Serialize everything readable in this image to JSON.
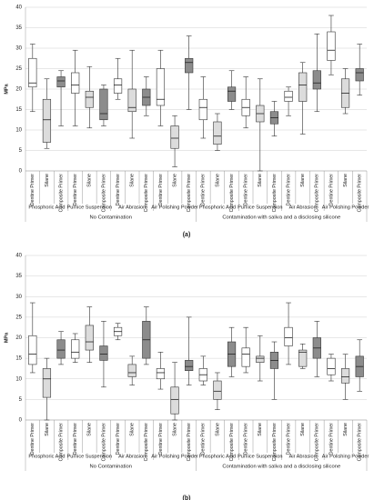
{
  "chart_data": [
    {
      "type": "box",
      "caption": "(a)",
      "ylabel": "MPa",
      "ylim": [
        0,
        40
      ],
      "yticks": [
        0,
        5,
        10,
        15,
        20,
        25,
        30,
        35,
        40
      ],
      "grid": true,
      "colors": [
        "#ffffff",
        "#dcdcdc",
        "#8c8c8c"
      ],
      "categories": [
        "Dentine Primer",
        "Silane",
        "Composite Primer",
        "Dentine Primer",
        "Silane",
        "Composite Primer",
        "Dentine Primer",
        "Silane",
        "Composite Primer",
        "Dentine Primer",
        "Silane",
        "Composite Primer",
        "Dentine Primer",
        "Silane",
        "Composite Primer",
        "Dentine Primer",
        "Silane",
        "Composite Primer",
        "Dentine Primer",
        "Silane",
        "Composite Primer",
        "Dentine Primer",
        "Silane",
        "Composite Primer"
      ],
      "treatments": [
        "Phosphoric Acid",
        "Pumice Suspension",
        "Air Abrasion",
        "Air Polishing Powder",
        "Phosphoric Acid",
        "Pumice Suspension",
        "Air Abrasion",
        "Air Polishing Powder"
      ],
      "contaminations": [
        "No Contamination",
        "Contamination with saliva and a disclosing silicone"
      ],
      "values": [
        {
          "min": 14.5,
          "q1": 20.5,
          "median": 21.5,
          "q3": 27.5,
          "max": 31
        },
        {
          "min": 5.5,
          "q1": 7,
          "median": 12.5,
          "q3": 17.5,
          "max": 22.5
        },
        {
          "min": 11,
          "q1": 20.5,
          "median": 22,
          "q3": 23,
          "max": 24.5
        },
        {
          "min": 11,
          "q1": 19,
          "median": 21,
          "q3": 24,
          "max": 29.5
        },
        {
          "min": 10.5,
          "q1": 15.5,
          "median": 18,
          "q3": 19.5,
          "max": 25.5
        },
        {
          "min": 11,
          "q1": 12.5,
          "median": 14,
          "q3": 20,
          "max": 21
        },
        {
          "min": 17.5,
          "q1": 19,
          "median": 21,
          "q3": 22.5,
          "max": 27.5
        },
        {
          "min": 8,
          "q1": 14.5,
          "median": 15.5,
          "q3": 20,
          "max": 29.5
        },
        {
          "min": 13.5,
          "q1": 16,
          "median": 18,
          "q3": 20,
          "max": 23
        },
        {
          "min": 11,
          "q1": 16,
          "median": 17.5,
          "q3": 25,
          "max": 29.5
        },
        {
          "min": 1,
          "q1": 5.5,
          "median": 8,
          "q3": 11,
          "max": 13.5
        },
        {
          "min": 15,
          "q1": 24,
          "median": 26.5,
          "q3": 27.5,
          "max": 33
        },
        {
          "min": 8,
          "q1": 12.5,
          "median": 15.5,
          "q3": 17.5,
          "max": 23
        },
        {
          "min": 5,
          "q1": 6.5,
          "median": 8.5,
          "q3": 12,
          "max": 14
        },
        {
          "min": 15,
          "q1": 17,
          "median": 19.5,
          "q3": 20.5,
          "max": 24.5
        },
        {
          "min": 10.5,
          "q1": 13.5,
          "median": 15.5,
          "q3": 17.5,
          "max": 23
        },
        {
          "min": 0,
          "q1": 12,
          "median": 14,
          "q3": 16,
          "max": 22.5
        },
        {
          "min": 8.5,
          "q1": 11.5,
          "median": 13,
          "q3": 14.5,
          "max": 17
        },
        {
          "min": 13.5,
          "q1": 17,
          "median": 18,
          "q3": 19.5,
          "max": 20.5
        },
        {
          "min": 9,
          "q1": 17,
          "median": 21,
          "q3": 24,
          "max": 26.5
        },
        {
          "min": 14.5,
          "q1": 20,
          "median": 21.5,
          "q3": 24.5,
          "max": 33.5
        },
        {
          "min": 23.5,
          "q1": 27,
          "median": 29.5,
          "q3": 34,
          "max": 38
        },
        {
          "min": 14,
          "q1": 15.5,
          "median": 19,
          "q3": 22.5,
          "max": 25
        },
        {
          "min": 18.5,
          "q1": 22,
          "median": 24,
          "q3": 25,
          "max": 31
        }
      ]
    },
    {
      "type": "box",
      "caption": "(b)",
      "ylabel": "MPa",
      "ylim": [
        0,
        40
      ],
      "yticks": [
        0,
        5,
        10,
        15,
        20,
        25,
        30,
        35,
        40
      ],
      "grid": true,
      "colors": [
        "#ffffff",
        "#dcdcdc",
        "#8c8c8c"
      ],
      "categories": [
        "Dentine Primer",
        "Silane",
        "Composite Primer",
        "Dentine Primer",
        "Silane",
        "Composite Primer",
        "Dentine Primer",
        "Silane",
        "Composite Primer",
        "Dentine Primer",
        "Silane",
        "Composite Primer",
        "Dentine Primer",
        "Silane",
        "Composite Primer",
        "Dentine Primer",
        "Silane",
        "Composite Primer",
        "Dentine Primer",
        "Silane",
        "Composite Primer",
        "Dentine Primer",
        "Silane",
        "Composite Primer"
      ],
      "treatments": [
        "Phosphoric Acid",
        "Pumice Suspension",
        "Air Abrasion",
        "Air Polishing Powder",
        "Phosphoric Acid",
        "Pumice Suspension",
        "Air Abrasion",
        "Air Polishing Powder"
      ],
      "contaminations": [
        "No Contamination",
        "Contamination with saliva and a disclosing silicone"
      ],
      "values": [
        {
          "min": 11.5,
          "q1": 13.5,
          "median": 16,
          "q3": 20.5,
          "max": 28.5
        },
        {
          "min": 0,
          "q1": 5.5,
          "median": 10,
          "q3": 12.5,
          "max": 15
        },
        {
          "min": 13.5,
          "q1": 15,
          "median": 17,
          "q3": 19.5,
          "max": 21.5
        },
        {
          "min": 14,
          "q1": 15,
          "median": 16.5,
          "q3": 19.5,
          "max": 21
        },
        {
          "min": 14,
          "q1": 17,
          "median": 19,
          "q3": 23,
          "max": 27.5
        },
        {
          "min": 8,
          "q1": 14.5,
          "median": 16,
          "q3": 18,
          "max": 24
        },
        {
          "min": 19.5,
          "q1": 20.5,
          "median": 21.5,
          "q3": 22.5,
          "max": 23.5
        },
        {
          "min": 8.5,
          "q1": 10.5,
          "median": 11.5,
          "q3": 13.5,
          "max": 15.5
        },
        {
          "min": 13.5,
          "q1": 15,
          "median": 19.5,
          "q3": 24,
          "max": 27.5
        },
        {
          "min": 7.5,
          "q1": 10,
          "median": 11.5,
          "q3": 12.5,
          "max": 16.5
        },
        {
          "min": 0,
          "q1": 1.5,
          "median": 5,
          "q3": 8,
          "max": 14
        },
        {
          "min": 8.5,
          "q1": 12,
          "median": 13,
          "q3": 14.5,
          "max": 25
        },
        {
          "min": 8.5,
          "q1": 9.5,
          "median": 11,
          "q3": 12.5,
          "max": 15.5
        },
        {
          "min": 2.5,
          "q1": 5,
          "median": 7,
          "q3": 9.5,
          "max": 11.5
        },
        {
          "min": 10.5,
          "q1": 13,
          "median": 16,
          "q3": 19,
          "max": 22.5
        },
        {
          "min": 11.5,
          "q1": 13,
          "median": 16,
          "q3": 17.5,
          "max": 22.5
        },
        {
          "min": 9.5,
          "q1": 14,
          "median": 15,
          "q3": 15.5,
          "max": 20.5
        },
        {
          "min": 5,
          "q1": 12.5,
          "median": 14.5,
          "q3": 16.5,
          "max": 19
        },
        {
          "min": 13.5,
          "q1": 18,
          "median": 20,
          "q3": 22.5,
          "max": 28.5
        },
        {
          "min": 12.5,
          "q1": 13,
          "median": 16.5,
          "q3": 17,
          "max": 18.5
        },
        {
          "min": 10.5,
          "q1": 15,
          "median": 17.5,
          "q3": 20,
          "max": 24
        },
        {
          "min": 9.5,
          "q1": 11,
          "median": 12.5,
          "q3": 15,
          "max": 16
        },
        {
          "min": 5,
          "q1": 9,
          "median": 10.5,
          "q3": 12.5,
          "max": 16
        },
        {
          "min": 7,
          "q1": 10.5,
          "median": 13,
          "q3": 15.5,
          "max": 19.5
        }
      ]
    }
  ]
}
